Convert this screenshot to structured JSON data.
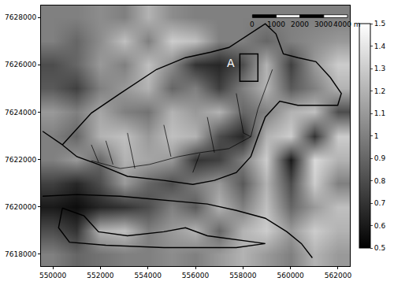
{
  "chart_data": {
    "type": "heatmap",
    "x": [
      550000,
      551000,
      552000,
      553000,
      554000,
      555000,
      556000,
      557000,
      558000,
      559000,
      560000,
      561000,
      562000
    ],
    "y": [
      7618000,
      7619000,
      7620000,
      7621000,
      7622000,
      7623000,
      7624000,
      7625000,
      7626000,
      7627000,
      7628000
    ],
    "values": [
      [
        1.0,
        0.9,
        0.95,
        1.0,
        1.0,
        1.05,
        1.0,
        1.1,
        1.2,
        1.1,
        1.0,
        1.2,
        1.1
      ],
      [
        0.8,
        0.7,
        1.2,
        1.25,
        1.0,
        1.1,
        1.2,
        0.9,
        1.2,
        1.3,
        1.1,
        1.3,
        1.2
      ],
      [
        0.6,
        0.55,
        0.65,
        0.7,
        0.8,
        1.0,
        0.85,
        1.2,
        1.0,
        1.25,
        0.9,
        1.1,
        1.25
      ],
      [
        0.75,
        0.65,
        0.8,
        1.1,
        0.9,
        0.8,
        1.0,
        1.1,
        0.85,
        1.2,
        0.8,
        1.3,
        1.0
      ],
      [
        1.0,
        1.1,
        0.9,
        1.2,
        1.15,
        1.1,
        0.7,
        0.75,
        1.0,
        1.3,
        0.6,
        1.35,
        1.2
      ],
      [
        1.0,
        0.9,
        1.2,
        1.25,
        1.1,
        1.25,
        1.2,
        0.8,
        0.65,
        1.2,
        1.3,
        0.7,
        1.3
      ],
      [
        1.1,
        1.0,
        1.15,
        1.0,
        0.95,
        1.2,
        1.1,
        1.2,
        0.9,
        1.0,
        1.2,
        1.25,
        0.8
      ],
      [
        0.85,
        0.75,
        1.0,
        1.1,
        1.2,
        0.9,
        1.0,
        0.75,
        1.0,
        1.2,
        0.85,
        1.0,
        1.2
      ],
      [
        0.8,
        0.9,
        1.1,
        1.0,
        1.25,
        1.05,
        0.7,
        0.65,
        0.8,
        1.2,
        0.75,
        1.1,
        1.3
      ],
      [
        1.0,
        0.9,
        1.05,
        1.25,
        1.0,
        1.3,
        1.25,
        1.0,
        1.0,
        0.9,
        1.0,
        1.05,
        1.1
      ],
      [
        1.0,
        1.0,
        1.05,
        1.0,
        1.2,
        1.05,
        1.0,
        1.0,
        1.0,
        1.0,
        1.0,
        1.0,
        1.0
      ]
    ],
    "zlim": [
      0.5,
      1.5
    ],
    "zticks": [
      0.5,
      0.6,
      0.7,
      0.8,
      0.9,
      1,
      1.1,
      1.2,
      1.3,
      1.4,
      1.5
    ],
    "xlim": [
      549500,
      562500
    ],
    "ylim": [
      7617500,
      7628500
    ],
    "xticks": [
      550000,
      552000,
      554000,
      556000,
      558000,
      560000,
      562000
    ],
    "yticks": [
      7618000,
      7620000,
      7622000,
      7624000,
      7626000,
      7628000
    ],
    "grid": false,
    "boundaries": [
      {
        "x": [
          550400,
          551620,
          552840,
          554360,
          555580,
          556650,
          557410,
          558020,
          558940,
          559390,
          559700,
          560310,
          561070,
          561680,
          562140,
          561990,
          561070,
          560310,
          559550,
          558940,
          558630,
          558330,
          557720,
          556800,
          555890,
          554670,
          553140,
          551920,
          551010,
          550400
        ],
        "y": [
          7622620,
          7623960,
          7624790,
          7625800,
          7626300,
          7626530,
          7626730,
          7627130,
          7627730,
          7627300,
          7626460,
          7626300,
          7626130,
          7625460,
          7624790,
          7624290,
          7624290,
          7624290,
          7624460,
          7623790,
          7622960,
          7622120,
          7621450,
          7621120,
          7620950,
          7621120,
          7621290,
          7621790,
          7622120,
          7622620
        ]
      },
      {
        "x": [
          549570,
          550400
        ],
        "y": [
          7623190,
          7622620
        ]
      },
      {
        "x": [
          549570,
          551010,
          552840,
          554670,
          556500,
          557720,
          558940,
          559850,
          560460,
          560920
        ],
        "y": [
          7620450,
          7620520,
          7620450,
          7620280,
          7620120,
          7619850,
          7619520,
          7618950,
          7618450,
          7617850
        ]
      },
      {
        "x": [
          550400,
          551310,
          551920,
          553140,
          554670,
          555580,
          556500,
          557720,
          558940,
          557720,
          554670,
          552230,
          550700,
          550240,
          550400
        ],
        "y": [
          7619950,
          7619620,
          7618950,
          7618780,
          7618950,
          7619120,
          7618780,
          7618610,
          7618450,
          7618280,
          7618280,
          7618380,
          7618510,
          7619120,
          7619950
        ]
      }
    ],
    "streams": [
      {
        "x": [
          558330,
          557410,
          556190,
          555280,
          554060,
          552840,
          551620
        ],
        "y": [
          7622960,
          7622460,
          7622290,
          7622120,
          7621790,
          7621620,
          7621950
        ]
      },
      {
        "x": [
          556500,
          556800
        ],
        "y": [
          7623790,
          7622290
        ]
      },
      {
        "x": [
          557720,
          558020,
          558330
        ],
        "y": [
          7624790,
          7623120,
          7622960
        ]
      },
      {
        "x": [
          559240,
          558630,
          558330
        ],
        "y": [
          7625800,
          7624130,
          7622960
        ]
      },
      {
        "x": [
          554670,
          554970
        ],
        "y": [
          7623460,
          7622120
        ]
      },
      {
        "x": [
          553140,
          553450
        ],
        "y": [
          7623120,
          7621620
        ]
      },
      {
        "x": [
          552230,
          552530
        ],
        "y": [
          7622790,
          7621790
        ]
      },
      {
        "x": [
          555890,
          556190
        ],
        "y": [
          7621450,
          7622260
        ]
      },
      {
        "x": [
          551620,
          551920
        ],
        "y": [
          7622620,
          7621890
        ]
      }
    ],
    "box": {
      "x": [
        557870,
        558630
      ],
      "y": [
        7625300,
        7626460
      ]
    },
    "annotations": [
      {
        "text": "A",
        "x": 557500,
        "y": 7626060
      }
    ],
    "scale_bar": {
      "x": 558400,
      "y": 7628050,
      "label_y": 7627700,
      "ticks": [
        0,
        1000,
        2000,
        3000,
        {
          "value": 4000,
          "label": "4000 m"
        }
      ]
    }
  }
}
